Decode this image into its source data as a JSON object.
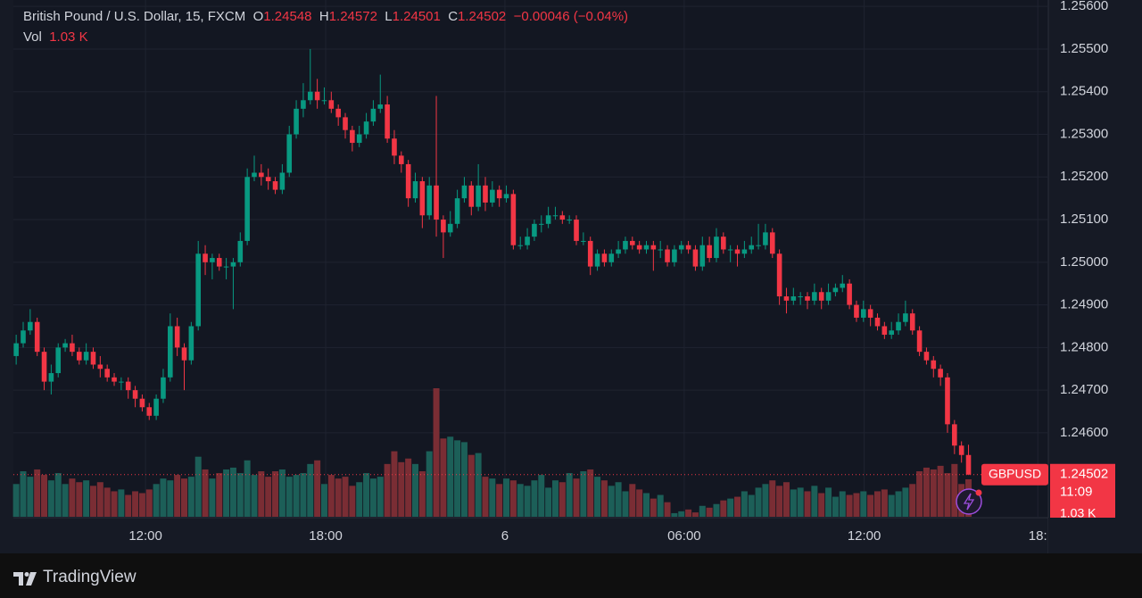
{
  "header": {
    "symbol_title": "British Pound / U.S. Dollar, 15, FXCM",
    "open_letter": "O",
    "high_letter": "H",
    "low_letter": "L",
    "close_letter": "C",
    "change": "−0.00046 (−0.04%)",
    "vol_title": "Vol",
    "volume_label": "1.03 K",
    "symbol": "GBPUSD",
    "countdown": "11:09"
  },
  "brand": "TradingView",
  "chart_data": {
    "type": "candlestick",
    "up_color": "#089981",
    "down_color": "#f23645",
    "volume_up_color": "#1c5f58",
    "volume_down_color": "#7a2d34",
    "grid": true,
    "ylim": [
      1.24401,
      1.25615
    ],
    "yticks": [
      {
        "value": 1.256,
        "label": "1.25600"
      },
      {
        "value": 1.255,
        "label": "1.25500"
      },
      {
        "value": 1.254,
        "label": "1.25400"
      },
      {
        "value": 1.253,
        "label": "1.25300"
      },
      {
        "value": 1.252,
        "label": "1.25200"
      },
      {
        "value": 1.251,
        "label": "1.25100"
      },
      {
        "value": 1.25,
        "label": "1.25000"
      },
      {
        "value": 1.249,
        "label": "1.24900"
      },
      {
        "value": 1.248,
        "label": "1.24800"
      },
      {
        "value": 1.247,
        "label": "1.24700"
      },
      {
        "value": 1.246,
        "label": "1.24600"
      }
    ],
    "xlim": [
      -0.4,
      147.4
    ],
    "xticks": [
      {
        "value": 18.47,
        "label": "12:00"
      },
      {
        "value": 44.2,
        "label": "18:00"
      },
      {
        "value": 69.8,
        "label": "6"
      },
      {
        "value": 95.4,
        "label": "06:00"
      },
      {
        "value": 121.1,
        "label": "12:00"
      },
      {
        "value": 145.9,
        "label": "18:"
      }
    ],
    "open": [
      1.2478,
      1.2481,
      1.2484,
      1.2486,
      1.2479,
      1.2472,
      1.2474,
      1.248,
      1.2481,
      1.2479,
      1.2477,
      1.2479,
      1.2476,
      1.2475,
      1.2473,
      1.2472,
      1.2472,
      1.247,
      1.2468,
      1.2466,
      1.2464,
      1.2468,
      1.2473,
      1.2485,
      1.248,
      1.2477,
      1.2485,
      1.2502,
      1.25,
      1.2501,
      1.2499,
      1.2499,
      1.25,
      1.2505,
      1.252,
      1.2521,
      1.252,
      1.2519,
      1.2517,
      1.2521,
      1.253,
      1.2536,
      1.2538,
      1.254,
      1.2538,
      1.2538,
      1.2536,
      1.2534,
      1.2531,
      1.2528,
      1.253,
      1.2533,
      1.2536,
      1.2537,
      1.2529,
      1.2525,
      1.2523,
      1.2515,
      1.2519,
      1.2511,
      1.2518,
      1.251,
      1.2507,
      1.2509,
      1.2515,
      1.2518,
      1.2513,
      1.2518,
      1.2514,
      1.2517,
      1.2515,
      1.2516,
      1.2504,
      1.2504,
      1.2506,
      1.2509,
      1.2509,
      1.2511,
      1.2511,
      1.251,
      1.251,
      1.2505,
      1.2505,
      1.2499,
      1.2502,
      1.25,
      1.2502,
      1.2503,
      1.2505,
      1.2504,
      1.2503,
      1.2504,
      1.2503,
      1.2503,
      1.25,
      1.2503,
      1.2504,
      1.2503,
      1.2499,
      1.2504,
      1.2501,
      1.2506,
      1.2503,
      1.2503,
      1.2502,
      1.2503,
      1.2504,
      1.2504,
      1.2507,
      1.2502,
      1.2492,
      1.2491,
      1.2492,
      1.2492,
      1.2491,
      1.2493,
      1.2491,
      1.2493,
      1.2494,
      1.2495,
      1.249,
      1.2487,
      1.2489,
      1.2487,
      1.2485,
      1.2483,
      1.2484,
      1.2486,
      1.2488,
      1.2484,
      1.2479,
      1.2477,
      1.2475,
      1.2473,
      1.2462,
      1.2457,
      1.24548
    ],
    "high": [
      1.2483,
      1.2486,
      1.2489,
      1.2487,
      1.248,
      1.2476,
      1.2481,
      1.2482,
      1.2483,
      1.248,
      1.2481,
      1.248,
      1.2478,
      1.2476,
      1.2474,
      1.2473,
      1.2473,
      1.2471,
      1.2469,
      1.2467,
      1.2469,
      1.2475,
      1.2488,
      1.2487,
      1.2481,
      1.2486,
      1.2505,
      1.2504,
      1.2502,
      1.2502,
      1.2501,
      1.2501,
      1.2507,
      1.2522,
      1.2525,
      1.2523,
      1.2522,
      1.252,
      1.2523,
      1.2532,
      1.2538,
      1.2542,
      1.255,
      1.2543,
      1.2541,
      1.254,
      1.2537,
      1.2535,
      1.2532,
      1.2532,
      1.2535,
      1.2538,
      1.2544,
      1.2539,
      1.2531,
      1.2526,
      1.2524,
      1.2521,
      1.252,
      1.252,
      1.2539,
      1.2511,
      1.2512,
      1.2517,
      1.252,
      1.2519,
      1.2523,
      1.252,
      1.2519,
      1.2518,
      1.2518,
      1.2517,
      1.2506,
      1.2508,
      1.251,
      1.2511,
      1.2513,
      1.2513,
      1.2512,
      1.2511,
      1.2511,
      1.2507,
      1.2506,
      1.2503,
      1.2503,
      1.2503,
      1.2505,
      1.2506,
      1.2506,
      1.2505,
      1.2505,
      1.2505,
      1.2505,
      1.2504,
      1.2504,
      1.2505,
      1.2505,
      1.2504,
      1.2506,
      1.2506,
      1.2508,
      1.2507,
      1.2504,
      1.2504,
      1.2505,
      1.2506,
      1.2509,
      1.2509,
      1.2508,
      1.2503,
      1.2494,
      1.2494,
      1.2493,
      1.2493,
      1.2495,
      1.2494,
      1.2495,
      1.2495,
      1.2497,
      1.2496,
      1.2491,
      1.2491,
      1.249,
      1.2488,
      1.2486,
      1.2486,
      1.2488,
      1.2491,
      1.2489,
      1.2485,
      1.248,
      1.2478,
      1.2476,
      1.2474,
      1.2463,
      1.2458,
      1.24572
    ],
    "low": [
      1.2476,
      1.248,
      1.2483,
      1.2478,
      1.247,
      1.2469,
      1.2473,
      1.2479,
      1.2478,
      1.2476,
      1.2476,
      1.2475,
      1.2473,
      1.2472,
      1.2471,
      1.247,
      1.2468,
      1.2466,
      1.2465,
      1.2463,
      1.2463,
      1.2467,
      1.2472,
      1.2478,
      1.247,
      1.2476,
      1.2484,
      1.2497,
      1.2496,
      1.2498,
      1.2496,
      1.2489,
      1.2499,
      1.2504,
      1.2519,
      1.2518,
      1.2517,
      1.2516,
      1.2516,
      1.252,
      1.2529,
      1.2534,
      1.2537,
      1.2536,
      1.2537,
      1.2535,
      1.2532,
      1.2529,
      1.2526,
      1.2527,
      1.2529,
      1.2532,
      1.2535,
      1.2528,
      1.2523,
      1.2521,
      1.2513,
      1.2514,
      1.2508,
      1.251,
      1.2506,
      1.2501,
      1.2506,
      1.2508,
      1.2514,
      1.2511,
      1.2512,
      1.2512,
      1.2513,
      1.2513,
      1.2514,
      1.2503,
      1.2503,
      1.2503,
      1.2505,
      1.2507,
      1.2508,
      1.251,
      1.2509,
      1.2509,
      1.2504,
      1.2504,
      1.2497,
      1.2498,
      1.2499,
      1.2499,
      1.2501,
      1.2502,
      1.2503,
      1.2502,
      1.2502,
      1.2498,
      1.2501,
      1.2499,
      1.2499,
      1.2502,
      1.2502,
      1.2498,
      1.2498,
      1.25,
      1.25,
      1.2502,
      1.25,
      1.2499,
      1.2501,
      1.2502,
      1.2503,
      1.2503,
      1.2501,
      1.249,
      1.2488,
      1.249,
      1.249,
      1.2489,
      1.249,
      1.2489,
      1.249,
      1.2492,
      1.2493,
      1.2489,
      1.2486,
      1.2486,
      1.2485,
      1.2484,
      1.2482,
      1.2482,
      1.2483,
      1.2485,
      1.2483,
      1.2478,
      1.2476,
      1.2473,
      1.2471,
      1.246,
      1.2455,
      1.2453,
      1.24501
    ],
    "close": [
      1.2481,
      1.2484,
      1.2486,
      1.2479,
      1.2472,
      1.2474,
      1.248,
      1.2481,
      1.2479,
      1.2477,
      1.2479,
      1.2476,
      1.2475,
      1.2473,
      1.2472,
      1.2472,
      1.247,
      1.2468,
      1.2466,
      1.2464,
      1.2468,
      1.2473,
      1.2485,
      1.248,
      1.2477,
      1.2485,
      1.2502,
      1.25,
      1.2501,
      1.2499,
      1.2499,
      1.25,
      1.2505,
      1.252,
      1.2521,
      1.252,
      1.2519,
      1.2517,
      1.2521,
      1.253,
      1.2536,
      1.2538,
      1.254,
      1.2538,
      1.2538,
      1.2536,
      1.2534,
      1.2531,
      1.2528,
      1.253,
      1.2533,
      1.2536,
      1.2537,
      1.2529,
      1.2525,
      1.2523,
      1.2515,
      1.2519,
      1.2511,
      1.2518,
      1.251,
      1.2507,
      1.2509,
      1.2515,
      1.2518,
      1.2513,
      1.2518,
      1.2514,
      1.2517,
      1.2515,
      1.2516,
      1.2504,
      1.2504,
      1.2506,
      1.2509,
      1.2509,
      1.2511,
      1.2511,
      1.251,
      1.251,
      1.2505,
      1.2505,
      1.2499,
      1.2502,
      1.25,
      1.2502,
      1.2503,
      1.2505,
      1.2504,
      1.2503,
      1.2504,
      1.2503,
      1.2503,
      1.25,
      1.2503,
      1.2504,
      1.2503,
      1.2499,
      1.2504,
      1.2501,
      1.2506,
      1.2503,
      1.2503,
      1.2502,
      1.2503,
      1.2504,
      1.2504,
      1.2507,
      1.2502,
      1.2492,
      1.2491,
      1.2492,
      1.2492,
      1.2491,
      1.2493,
      1.2491,
      1.2493,
      1.2494,
      1.2495,
      1.249,
      1.2487,
      1.2489,
      1.2487,
      1.2485,
      1.2483,
      1.2484,
      1.2486,
      1.2488,
      1.2484,
      1.2479,
      1.2477,
      1.2475,
      1.2473,
      1.2462,
      1.2457,
      1.24548,
      1.24502
    ],
    "volume": [
      900,
      1250,
      1100,
      1300,
      1150,
      1000,
      1200,
      900,
      1050,
      950,
      1000,
      850,
      950,
      800,
      700,
      750,
      600,
      700,
      650,
      750,
      900,
      1050,
      1000,
      1150,
      1050,
      1100,
      1650,
      1300,
      1050,
      1200,
      1300,
      1350,
      1200,
      1550,
      1150,
      1250,
      1100,
      1250,
      1300,
      1100,
      1150,
      1200,
      1450,
      1550,
      900,
      1150,
      1050,
      1100,
      850,
      950,
      1200,
      1050,
      1100,
      1450,
      1800,
      1500,
      1600,
      1450,
      1250,
      1800,
      3530,
      2150,
      2200,
      2100,
      2050,
      1700,
      1750,
      1100,
      1050,
      900,
      1050,
      1000,
      900,
      850,
      1000,
      1150,
      800,
      1000,
      950,
      1200,
      1050,
      1250,
      1300,
      1100,
      1000,
      850,
      950,
      700,
      900,
      750,
      650,
      500,
      600,
      400,
      100,
      150,
      200,
      120,
      300,
      250,
      350,
      450,
      500,
      550,
      700,
      600,
      800,
      900,
      1000,
      850,
      950,
      750,
      800,
      700,
      850,
      650,
      800,
      550,
      700,
      600,
      650,
      700,
      600,
      700,
      750,
      600,
      700,
      800,
      900,
      1250,
      1350,
      1300,
      1400,
      1200,
      1450,
      900,
      1030
    ]
  }
}
